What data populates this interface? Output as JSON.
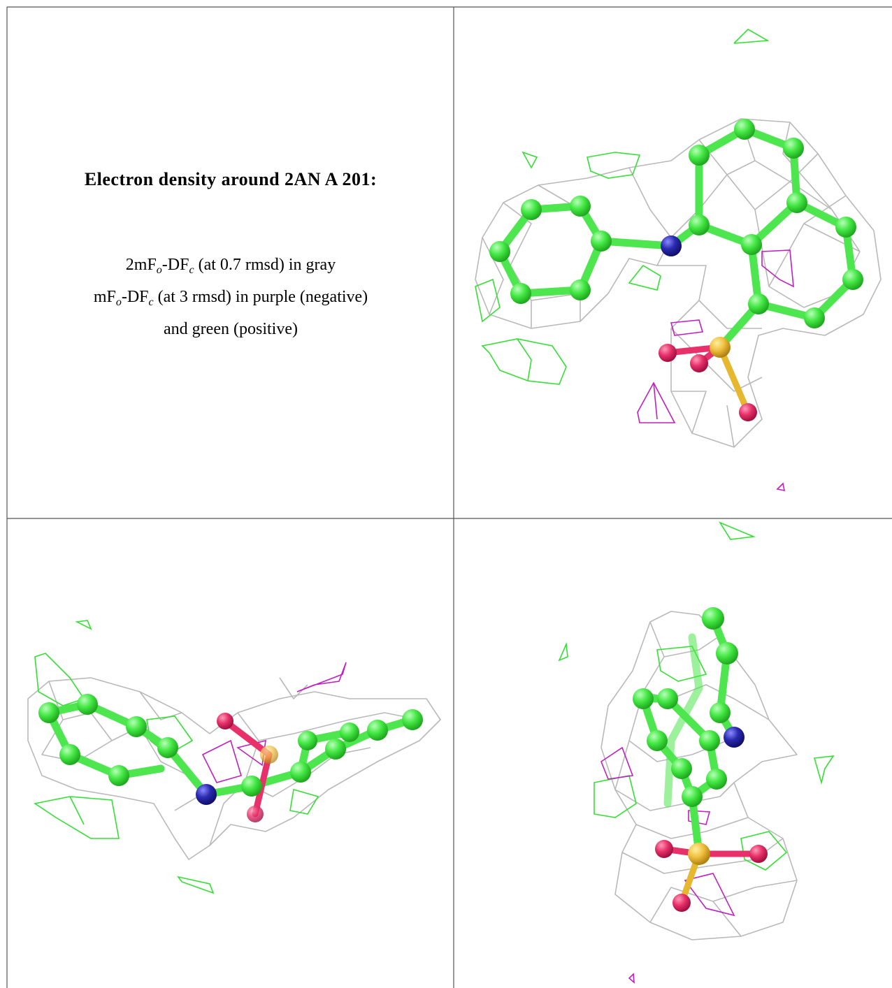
{
  "title": "Electron density around 2AN A 201:",
  "legend": [
    [
      {
        "text": "2mF"
      },
      {
        "text": "o",
        "sub": true
      },
      {
        "text": "-DF"
      },
      {
        "text": "c",
        "sub": true
      },
      {
        "text": " (at 0.7 rmsd) in gray"
      }
    ],
    [
      {
        "text": "mF"
      },
      {
        "text": "o",
        "sub": true
      },
      {
        "text": "-DF"
      },
      {
        "text": "c",
        "sub": true
      },
      {
        "text": " (at 3 rmsd) in purple (negative)"
      }
    ],
    [
      {
        "text": "and green (positive)"
      }
    ]
  ]
}
